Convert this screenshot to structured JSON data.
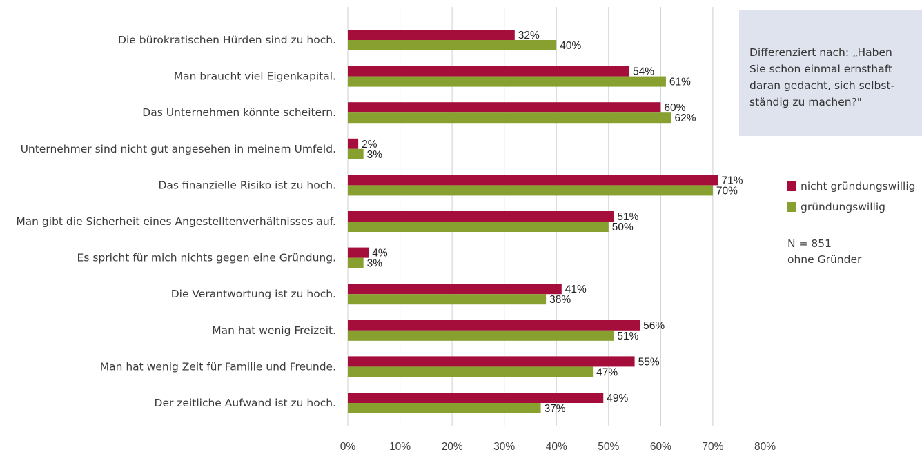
{
  "chart_data": {
    "type": "bar",
    "orientation": "horizontal",
    "categories": [
      "Die bürokratischen Hürden sind zu hoch.",
      "Man braucht viel Eigenkapital.",
      "Das Unternehmen könnte scheitern.",
      "Unternehmer sind nicht gut angesehen in meinem Umfeld.",
      "Das finanzielle Risiko ist zu hoch.",
      "Man gibt die Sicherheit eines Angestelltenverhältnisses auf.",
      "Es spricht für mich nichts gegen eine Gründung.",
      "Die Verantwortung ist zu hoch.",
      "Man hat wenig Freizeit.",
      "Man hat wenig Zeit für Familie und Freunde.",
      "Der zeitliche Aufwand ist zu hoch."
    ],
    "series": [
      {
        "name": "nicht gründungswillig",
        "color": "#a50d3b",
        "values": [
          32,
          54,
          60,
          2,
          71,
          51,
          4,
          41,
          56,
          55,
          49
        ],
        "labels": [
          "32%",
          "54%",
          "60%",
          "2%",
          "71%",
          "51%",
          "4%",
          "41%",
          "56%",
          "55%",
          "49%"
        ]
      },
      {
        "name": "gründungswillig",
        "color": "#87a030",
        "values": [
          40,
          61,
          62,
          3,
          70,
          50,
          3,
          38,
          51,
          47,
          37
        ],
        "labels": [
          "40%",
          "61%",
          "62%",
          "3%",
          "70%",
          "50%",
          "3%",
          "38%",
          "51%",
          "47%",
          "37%"
        ]
      }
    ],
    "xlim": [
      0,
      80
    ],
    "xticks": [
      "0%",
      "10%",
      "20%",
      "30%",
      "40%",
      "50%",
      "60%",
      "70%",
      "80%"
    ],
    "grid": true,
    "gridline_color": "#cfcfcf",
    "legend_position": "right"
  },
  "infobox": {
    "lines": [
      "Differenziert nach: „Haben",
      "Sie schon einmal ernsthaft",
      "daran gedacht, sich selbst-",
      "ständig zu machen?\""
    ]
  },
  "legend": [
    {
      "label": "nicht gründungswillig",
      "color": "#a50d3b"
    },
    {
      "label": "gründungswillig",
      "color": "#87a030"
    }
  ],
  "note": {
    "n": "N = 851",
    "subset": "ohne Gründer"
  }
}
